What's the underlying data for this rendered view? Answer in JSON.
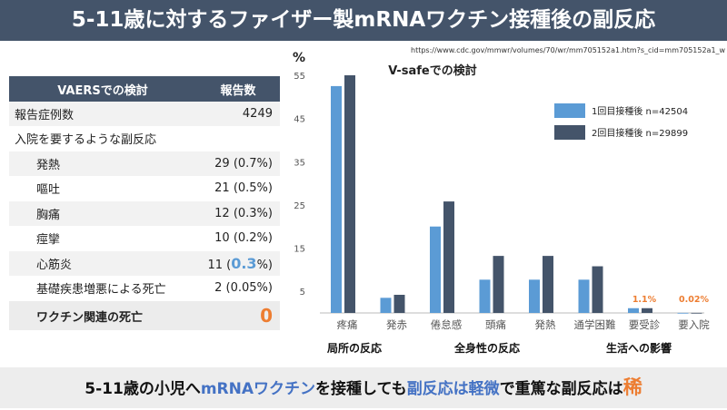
{
  "title": "5-11歳に対するファイザー製mRNAワクチン接種後の副反応",
  "source_url": "https://www.cdc.gov/mmwr/volumes/70/wr/mm705152a1.htm?s_cid=mm705152a1_w",
  "vaers": {
    "header_left": "VAERSでの検討",
    "header_right": "報告数",
    "total_label": "報告症例数",
    "total_value": "4249",
    "hosp_label": "入院を要するような副反応",
    "rows": [
      {
        "label": "発熱",
        "value": "29 (0.7%)"
      },
      {
        "label": "嘔吐",
        "value": "21 (0.5%)"
      },
      {
        "label": "胸痛",
        "value": "12 (0.3%)"
      },
      {
        "label": "痙攣",
        "value": "10 (0.2%)"
      }
    ],
    "myo_label": "心筋炎",
    "myo_pre": "11 (",
    "myo_hl": "0.3",
    "myo_post": "%)",
    "death_label": "基礎疾患増悪による死亡",
    "death_value": "2 (0.05%)",
    "vax_death_label": "ワクチン関連の死亡",
    "vax_death_value": "0"
  },
  "chart_data": {
    "type": "bar",
    "title": "V-safeでの検討",
    "ylabel": "%",
    "ylim": [
      0,
      55
    ],
    "yticks": [
      5,
      15,
      25,
      35,
      45,
      55
    ],
    "categories": [
      "疼痛",
      "発赤",
      "倦怠感",
      "頭痛",
      "発熱",
      "通学困難",
      "要受診",
      "要入院"
    ],
    "series": [
      {
        "name": "1回目接種後 n=42504",
        "color": "#5b9bd5",
        "values": [
          52.5,
          3.5,
          20.0,
          7.7,
          7.7,
          7.7,
          1.1,
          0.02
        ]
      },
      {
        "name": "2回目接種後 n=29899",
        "color": "#44546a",
        "values": [
          55.0,
          4.2,
          25.8,
          13.2,
          13.2,
          10.8,
          1.1,
          0.02
        ]
      }
    ],
    "annotations": [
      {
        "category": "要受診",
        "text": "1.1%"
      },
      {
        "category": "要入院",
        "text": "0.02%"
      }
    ],
    "groups": [
      "局所の反応",
      "全身性の反応",
      "生活への影響"
    ]
  },
  "bottom": {
    "p1": "5-11歳の小児へ",
    "p2": "mRNAワクチン",
    "p3": "を接種しても",
    "p4": "副反応は軽微",
    "p5": "で重篤な副反応は",
    "p6": "稀"
  },
  "colors": {
    "accent_blue": "#5b9bd5",
    "dark": "#44546a",
    "orange": "#ed7d31"
  }
}
